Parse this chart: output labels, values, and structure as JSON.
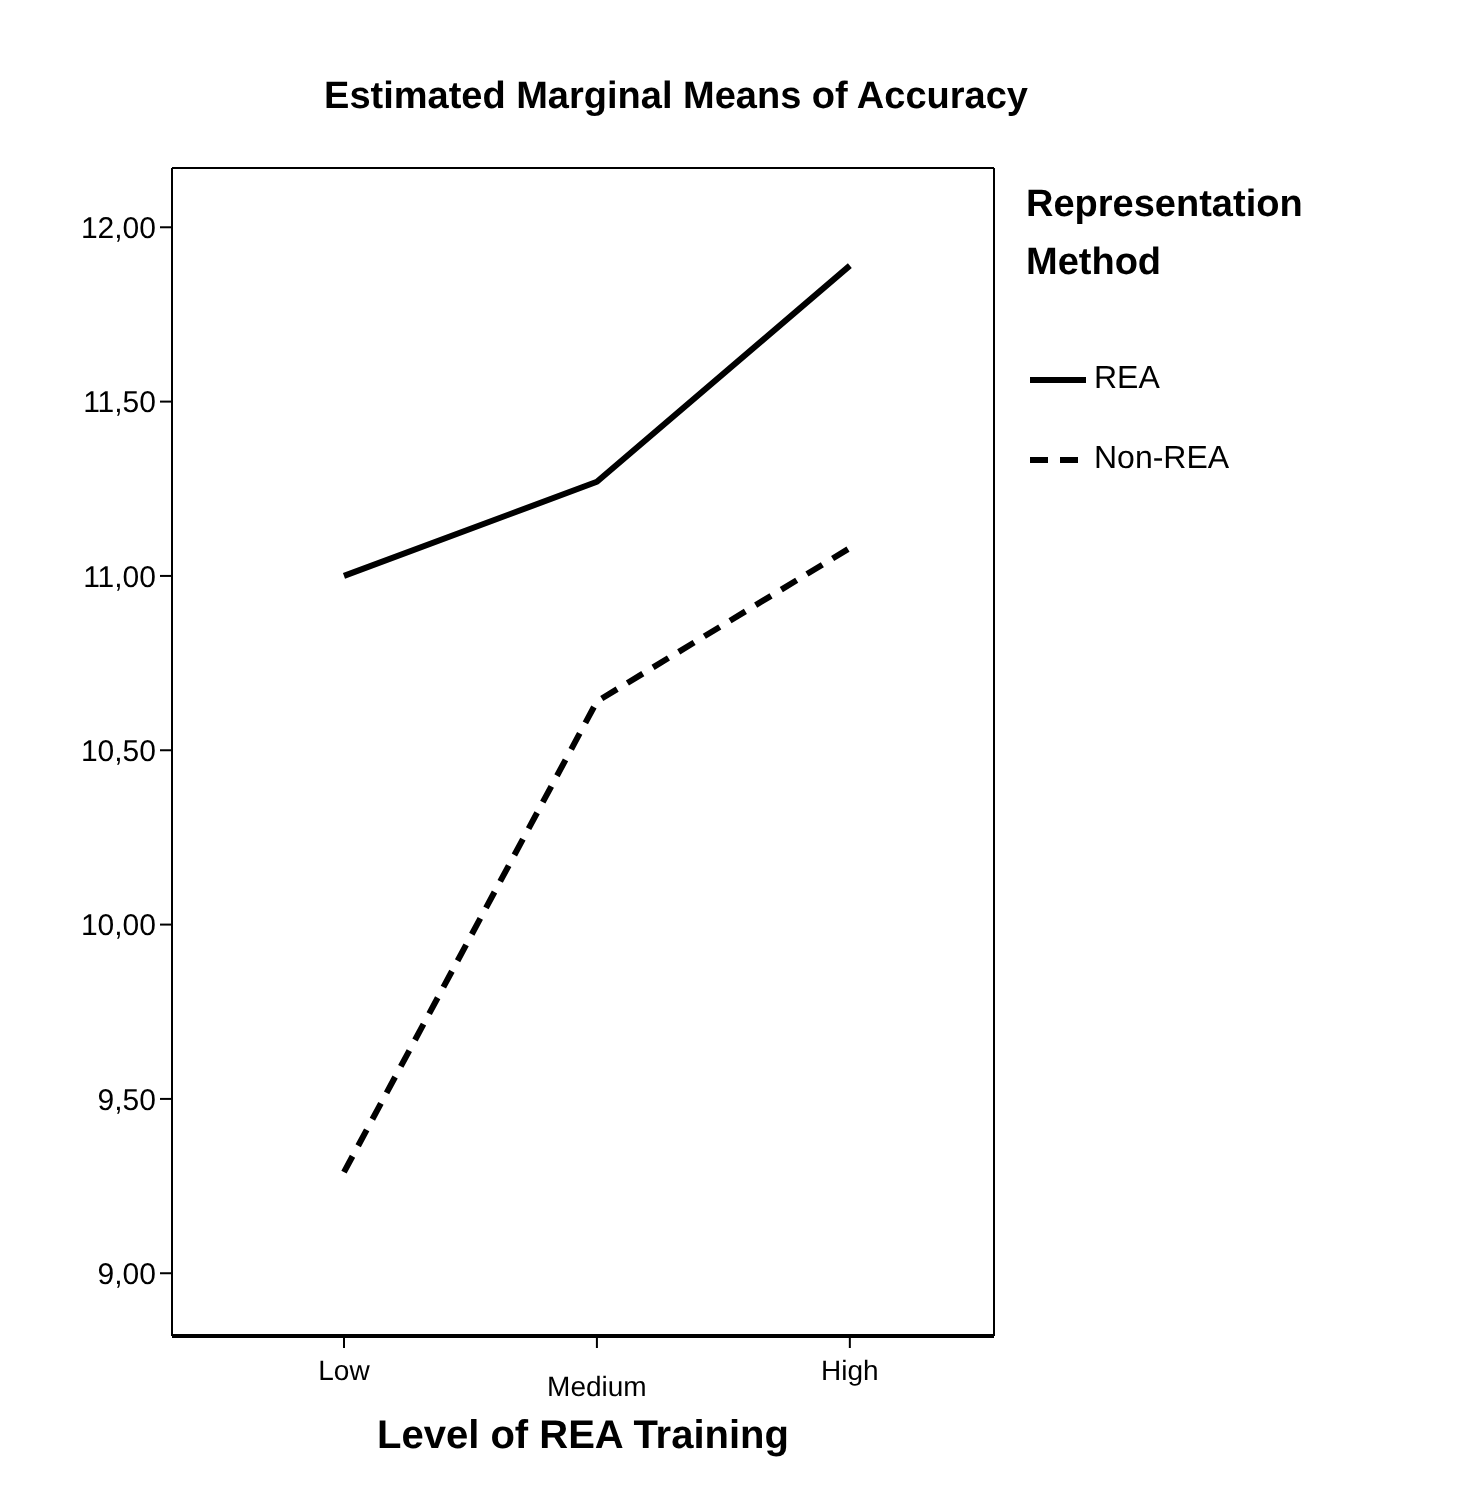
{
  "chart_data": {
    "type": "line",
    "title": "Estimated Marginal Means of Accuracy",
    "xlabel": "Level of REA Training",
    "legend_title": "Representation Method",
    "categories": [
      "Low",
      "Medium",
      "High"
    ],
    "series": [
      {
        "name": "REA",
        "color": "#000000",
        "line_style": "solid",
        "values": [
          11.0,
          11.27,
          11.89
        ]
      },
      {
        "name": "Non-REA",
        "color": "#000000",
        "line_style": "dashed",
        "values": [
          9.29,
          10.64,
          11.08
        ]
      }
    ],
    "ylim": [
      8.82,
      12.17
    ],
    "yticks": [
      {
        "value": 9,
        "label": "9,00"
      },
      {
        "value": 9.5,
        "label": "9,50"
      },
      {
        "value": 10,
        "label": "10,00"
      },
      {
        "value": 10.5,
        "label": "10,50"
      },
      {
        "value": 11,
        "label": "11,00"
      },
      {
        "value": 11.5,
        "label": "11,50"
      },
      {
        "value": 12,
        "label": "12,00"
      }
    ],
    "grid": false,
    "legend": "right",
    "marker": "none"
  }
}
